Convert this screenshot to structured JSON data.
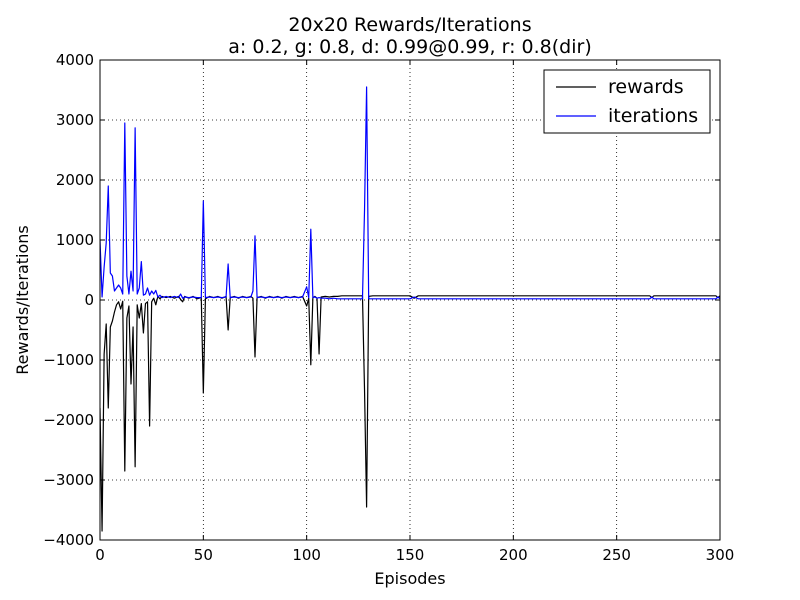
{
  "chart_data": {
    "type": "line",
    "title": "20x20 Rewards/Iterations",
    "subtitle": "a: 0.2, g: 0.8, d: 0.99@0.99, r: 0.8(dir)",
    "xlabel": "Episodes",
    "ylabel": "Rewards/Iterations",
    "xlim": [
      0,
      300
    ],
    "ylim": [
      -4000,
      4000
    ],
    "xticks": [
      0,
      50,
      100,
      150,
      200,
      250,
      300
    ],
    "yticks": [
      -4000,
      -3000,
      -2000,
      -1000,
      0,
      1000,
      2000,
      3000,
      4000
    ],
    "grid": true,
    "legend_position": "top-right",
    "series": [
      {
        "name": "rewards",
        "color": "#000000",
        "points": [
          [
            0,
            -1800
          ],
          [
            1,
            -3850
          ],
          [
            2,
            -900
          ],
          [
            3,
            -400
          ],
          [
            4,
            -1800
          ],
          [
            5,
            -450
          ],
          [
            6,
            -350
          ],
          [
            7,
            -200
          ],
          [
            8,
            -80
          ],
          [
            9,
            -30
          ],
          [
            10,
            -150
          ],
          [
            11,
            -20
          ],
          [
            12,
            -2850
          ],
          [
            13,
            -300
          ],
          [
            14,
            -100
          ],
          [
            15,
            -1400
          ],
          [
            16,
            -450
          ],
          [
            17,
            -2780
          ],
          [
            18,
            -80
          ],
          [
            19,
            -300
          ],
          [
            20,
            -60
          ],
          [
            21,
            -550
          ],
          [
            22,
            -60
          ],
          [
            23,
            -30
          ],
          [
            24,
            -2100
          ],
          [
            25,
            -30
          ],
          [
            26,
            30
          ],
          [
            27,
            -80
          ],
          [
            28,
            60
          ],
          [
            29,
            20
          ],
          [
            30,
            60
          ],
          [
            32,
            40
          ],
          [
            34,
            60
          ],
          [
            36,
            30
          ],
          [
            38,
            60
          ],
          [
            39,
            10
          ],
          [
            40,
            -30
          ],
          [
            41,
            60
          ],
          [
            43,
            30
          ],
          [
            45,
            60
          ],
          [
            47,
            20
          ],
          [
            49,
            40
          ],
          [
            50,
            -1550
          ],
          [
            51,
            20
          ],
          [
            53,
            60
          ],
          [
            55,
            40
          ],
          [
            57,
            60
          ],
          [
            59,
            30
          ],
          [
            61,
            60
          ],
          [
            62,
            -500
          ],
          [
            63,
            40
          ],
          [
            65,
            60
          ],
          [
            67,
            30
          ],
          [
            69,
            60
          ],
          [
            71,
            40
          ],
          [
            73,
            60
          ],
          [
            74,
            30
          ],
          [
            75,
            -950
          ],
          [
            76,
            40
          ],
          [
            78,
            60
          ],
          [
            80,
            30
          ],
          [
            82,
            60
          ],
          [
            84,
            40
          ],
          [
            86,
            60
          ],
          [
            88,
            30
          ],
          [
            90,
            60
          ],
          [
            92,
            40
          ],
          [
            94,
            60
          ],
          [
            96,
            40
          ],
          [
            98,
            60
          ],
          [
            100,
            -100
          ],
          [
            101,
            30
          ],
          [
            102,
            -1080
          ],
          [
            103,
            40
          ],
          [
            104,
            60
          ],
          [
            105,
            30
          ],
          [
            106,
            -900
          ],
          [
            107,
            50
          ],
          [
            109,
            60
          ],
          [
            111,
            50
          ],
          [
            113,
            60
          ],
          [
            115,
            60
          ],
          [
            117,
            70
          ],
          [
            119,
            70
          ],
          [
            121,
            70
          ],
          [
            123,
            70
          ],
          [
            125,
            70
          ],
          [
            127,
            70
          ],
          [
            128,
            -1500
          ],
          [
            129,
            -3450
          ],
          [
            130,
            60
          ],
          [
            132,
            70
          ],
          [
            135,
            70
          ],
          [
            140,
            70
          ],
          [
            145,
            70
          ],
          [
            150,
            70
          ],
          [
            152,
            30
          ],
          [
            154,
            70
          ],
          [
            160,
            70
          ],
          [
            170,
            70
          ],
          [
            180,
            70
          ],
          [
            190,
            70
          ],
          [
            200,
            70
          ],
          [
            210,
            70
          ],
          [
            220,
            70
          ],
          [
            230,
            70
          ],
          [
            240,
            70
          ],
          [
            250,
            70
          ],
          [
            260,
            70
          ],
          [
            266,
            70
          ],
          [
            267,
            40
          ],
          [
            268,
            70
          ],
          [
            275,
            70
          ],
          [
            280,
            70
          ],
          [
            290,
            70
          ],
          [
            298,
            70
          ],
          [
            299,
            40
          ],
          [
            300,
            70
          ]
        ]
      },
      {
        "name": "iterations",
        "color": "#0000ff",
        "points": [
          [
            0,
            1000
          ],
          [
            1,
            50
          ],
          [
            2,
            550
          ],
          [
            3,
            950
          ],
          [
            4,
            1900
          ],
          [
            5,
            450
          ],
          [
            6,
            400
          ],
          [
            7,
            150
          ],
          [
            8,
            200
          ],
          [
            9,
            250
          ],
          [
            10,
            200
          ],
          [
            11,
            100
          ],
          [
            12,
            2950
          ],
          [
            13,
            400
          ],
          [
            14,
            100
          ],
          [
            15,
            480
          ],
          [
            16,
            150
          ],
          [
            17,
            2870
          ],
          [
            18,
            100
          ],
          [
            19,
            200
          ],
          [
            20,
            640
          ],
          [
            21,
            80
          ],
          [
            22,
            100
          ],
          [
            23,
            200
          ],
          [
            24,
            80
          ],
          [
            25,
            150
          ],
          [
            26,
            100
          ],
          [
            27,
            160
          ],
          [
            28,
            50
          ],
          [
            29,
            80
          ],
          [
            30,
            40
          ],
          [
            32,
            60
          ],
          [
            34,
            40
          ],
          [
            36,
            60
          ],
          [
            38,
            40
          ],
          [
            39,
            100
          ],
          [
            40,
            30
          ],
          [
            41,
            50
          ],
          [
            43,
            40
          ],
          [
            45,
            50
          ],
          [
            47,
            40
          ],
          [
            49,
            40
          ],
          [
            50,
            1650
          ],
          [
            51,
            40
          ],
          [
            53,
            50
          ],
          [
            55,
            40
          ],
          [
            57,
            50
          ],
          [
            59,
            40
          ],
          [
            61,
            50
          ],
          [
            62,
            600
          ],
          [
            63,
            40
          ],
          [
            65,
            50
          ],
          [
            67,
            40
          ],
          [
            69,
            50
          ],
          [
            71,
            40
          ],
          [
            73,
            50
          ],
          [
            74,
            150
          ],
          [
            75,
            1070
          ],
          [
            76,
            40
          ],
          [
            78,
            50
          ],
          [
            80,
            40
          ],
          [
            82,
            50
          ],
          [
            84,
            40
          ],
          [
            86,
            50
          ],
          [
            88,
            40
          ],
          [
            90,
            50
          ],
          [
            92,
            40
          ],
          [
            94,
            50
          ],
          [
            96,
            40
          ],
          [
            98,
            50
          ],
          [
            100,
            220
          ],
          [
            101,
            40
          ],
          [
            102,
            1180
          ],
          [
            103,
            40
          ],
          [
            104,
            50
          ],
          [
            105,
            30
          ],
          [
            106,
            40
          ],
          [
            107,
            30
          ],
          [
            109,
            30
          ],
          [
            111,
            20
          ],
          [
            113,
            30
          ],
          [
            115,
            20
          ],
          [
            117,
            20
          ],
          [
            119,
            20
          ],
          [
            121,
            20
          ],
          [
            123,
            20
          ],
          [
            125,
            20
          ],
          [
            127,
            20
          ],
          [
            128,
            1500
          ],
          [
            129,
            3550
          ],
          [
            130,
            20
          ],
          [
            132,
            20
          ],
          [
            135,
            20
          ],
          [
            140,
            20
          ],
          [
            145,
            20
          ],
          [
            150,
            20
          ],
          [
            152,
            50
          ],
          [
            154,
            20
          ],
          [
            160,
            20
          ],
          [
            170,
            20
          ],
          [
            180,
            20
          ],
          [
            190,
            20
          ],
          [
            200,
            20
          ],
          [
            210,
            20
          ],
          [
            220,
            20
          ],
          [
            230,
            20
          ],
          [
            240,
            20
          ],
          [
            250,
            20
          ],
          [
            260,
            20
          ],
          [
            266,
            20
          ],
          [
            267,
            50
          ],
          [
            268,
            20
          ],
          [
            275,
            20
          ],
          [
            280,
            20
          ],
          [
            290,
            20
          ],
          [
            298,
            20
          ],
          [
            299,
            50
          ],
          [
            300,
            20
          ]
        ]
      }
    ]
  }
}
